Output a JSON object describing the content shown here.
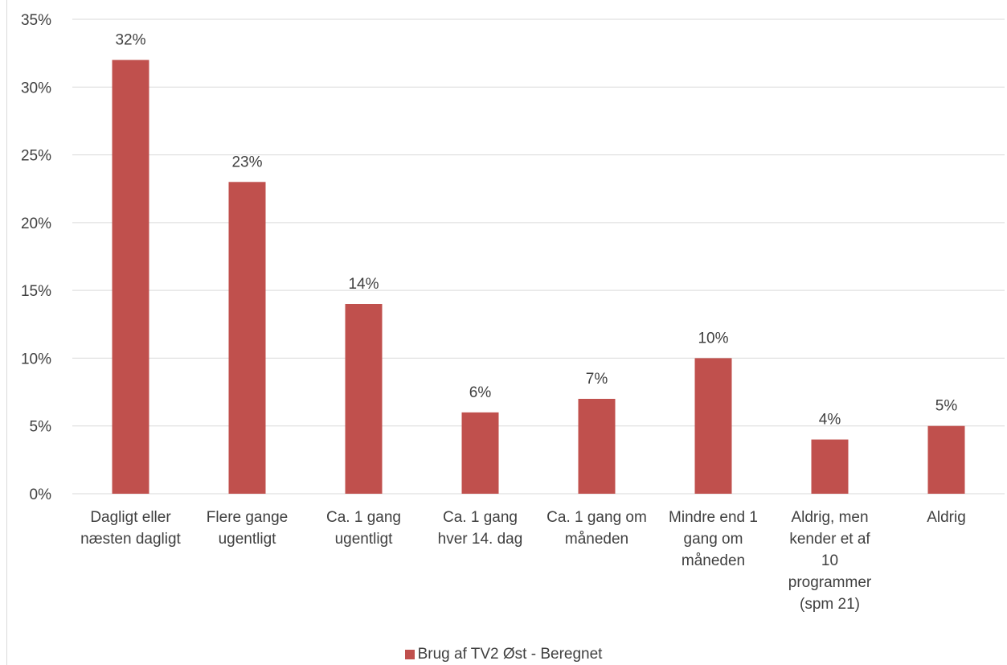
{
  "chart_data": {
    "type": "bar",
    "categories": [
      [
        "Dagligt eller",
        "næsten dagligt"
      ],
      [
        "Flere gange",
        "ugentligt"
      ],
      [
        "Ca. 1 gang",
        "ugentligt"
      ],
      [
        "Ca. 1 gang",
        "hver 14. dag"
      ],
      [
        "Ca. 1 gang om",
        "måneden"
      ],
      [
        "Mindre end 1",
        "gang om",
        "måneden"
      ],
      [
        "Aldrig, men",
        "kender et af",
        "10",
        "programmer",
        "(spm 21)"
      ],
      [
        "Aldrig"
      ]
    ],
    "series": [
      {
        "name": "Brug af TV2 Øst - Beregnet",
        "values": [
          32,
          23,
          14,
          6,
          7,
          10,
          4,
          5
        ],
        "labels": [
          "32%",
          "23%",
          "14%",
          "6%",
          "7%",
          "10%",
          "4%",
          "5%"
        ],
        "color": "#c0504d"
      }
    ],
    "yticks": [
      "0%",
      "5%",
      "10%",
      "15%",
      "20%",
      "25%",
      "30%",
      "35%"
    ],
    "ylim": [
      0,
      35
    ],
    "grid": true,
    "legend_position": "bottom",
    "title": "",
    "xlabel": "",
    "ylabel": ""
  }
}
